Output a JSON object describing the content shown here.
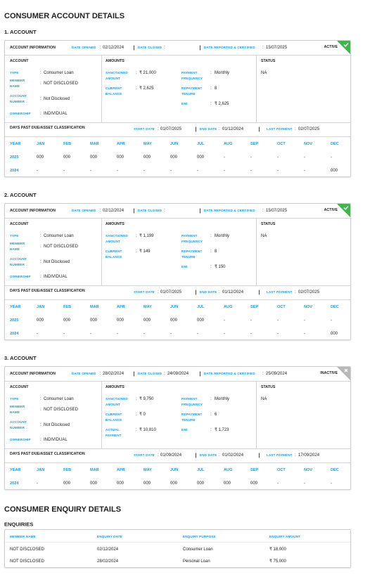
{
  "title": "CONSUMER ACCOUNT DETAILS",
  "separator": ":",
  "labels": {
    "account_information": "ACCOUNT INFORMATION",
    "date_opened": "DATE OPENED",
    "date_closed": "DATE CLOSED",
    "date_reported": "DATE REPORTED & CERTIFIED",
    "account": "ACCOUNT",
    "amounts": "AMOUNTS",
    "status": "STATUS",
    "type": "TYPE",
    "member_name": "MEMBER NAME",
    "account_number": "ACCOUNT NUMBER",
    "ownership": "OWNERSHIP",
    "dpd": "DAYS PAST DUE/ASSET CLASSIFICATION",
    "start_date": "START DATE",
    "end_date": "END DATE",
    "last_payment": "LAST PAYMENT",
    "dpd_columns": [
      "YEAR",
      "JAN",
      "FEB",
      "MAR",
      "APR",
      "MAY",
      "JUN",
      "JUL",
      "AUG",
      "SEP",
      "OCT",
      "NOV",
      "DEC"
    ]
  },
  "accounts": [
    {
      "heading": "1. ACCOUNT",
      "date_opened": "02/12/2024",
      "date_reported": "15/07/2025",
      "badge": "ACTIVE",
      "badge_color": "#3cb84a",
      "type": "Consumer Loan",
      "member_name": "NOT DISCLOSED",
      "account_number": "Not Disclosed",
      "ownership": "INDIVIDUAL",
      "amounts_left": [
        {
          "label": "SANCTIONED AMOUNT",
          "value": "₹ 21,000"
        },
        {
          "label": "CURRENT BALANCE",
          "value": "₹ 2,625"
        }
      ],
      "amounts_right": [
        {
          "label": "PAYMENT FREQUENCY",
          "value": "Monthly"
        },
        {
          "label": "REPAYMENT TENURE",
          "value": "8"
        },
        {
          "label": "EMI",
          "value": "₹ 2,625"
        }
      ],
      "status": "NA",
      "start_date": "01/07/2025",
      "end_date": "01/12/2024",
      "last_payment": "02/07/2025",
      "dpd_rows": [
        {
          "year": "2025",
          "months": [
            "000",
            "000",
            "000",
            "000",
            "000",
            "000",
            "000",
            "-",
            "-",
            "-",
            "-",
            "-"
          ]
        },
        {
          "year": "2024",
          "months": [
            "-",
            "-",
            "-",
            "-",
            "-",
            "-",
            "-",
            "-",
            "-",
            "-",
            "-",
            "000"
          ]
        }
      ]
    },
    {
      "heading": "2. ACCOUNT",
      "date_opened": "02/12/2024",
      "date_reported": "15/07/2025",
      "badge": "ACTIVE",
      "badge_color": "#3cb84a",
      "type": "Consumer Loan",
      "member_name": "NOT DISCLOSED",
      "account_number": "Not Disclosed",
      "ownership": "INDIVIDUAL",
      "amounts_left": [
        {
          "label": "SANCTIONED AMOUNT",
          "value": "₹ 1,199"
        },
        {
          "label": "CURRENT BALANCE",
          "value": "₹ 149"
        }
      ],
      "amounts_right": [
        {
          "label": "PAYMENT FREQUENCY",
          "value": "Monthly"
        },
        {
          "label": "REPAYMENT TENURE",
          "value": "8"
        },
        {
          "label": "EMI",
          "value": "₹ 150"
        }
      ],
      "status": "NA",
      "start_date": "01/07/2025",
      "end_date": "01/12/2024",
      "last_payment": "02/07/2025",
      "dpd_rows": [
        {
          "year": "2025",
          "months": [
            "000",
            "000",
            "000",
            "000",
            "000",
            "000",
            "000",
            "-",
            "-",
            "-",
            "-",
            "-"
          ]
        },
        {
          "year": "2024",
          "months": [
            "-",
            "-",
            "-",
            "-",
            "-",
            "-",
            "-",
            "-",
            "-",
            "-",
            "-",
            "000"
          ]
        }
      ]
    },
    {
      "heading": "3. ACCOUNT",
      "date_opened": "28/02/2024",
      "date_closed": "24/09/2024",
      "date_reported": "25/09/2024",
      "badge": "INACTIVE",
      "badge_color": "#b8b8b8",
      "type": "Consumer Loan",
      "member_name": "NOT DISCLOSED",
      "account_number": "Not Disclosed",
      "ownership": "INDIVIDUAL",
      "amounts_left": [
        {
          "label": "SANCTIONED AMOUNT",
          "value": "₹ 9,750"
        },
        {
          "label": "CURRENT BALANCE",
          "value": "₹ 0"
        },
        {
          "label": "ACTUAL PAYMENT",
          "value": "₹ 10,810"
        }
      ],
      "amounts_right": [
        {
          "label": "PAYMENT FREQUENCY",
          "value": "Monthly"
        },
        {
          "label": "REPAYMENT TENURE",
          "value": "6"
        },
        {
          "label": "EMI",
          "value": "₹ 1,723"
        }
      ],
      "status": "NA",
      "start_date": "01/09/2024",
      "end_date": "01/02/2024",
      "last_payment": "17/09/2024",
      "dpd_rows": [
        {
          "year": "2024",
          "months": [
            "-",
            "000",
            "000",
            "000",
            "000",
            "000",
            "000",
            "000",
            "000",
            "-",
            "-",
            "-"
          ]
        }
      ]
    }
  ],
  "enquiry": {
    "title": "CONSUMER ENQUIRY DETAILS",
    "subtitle": "ENQUIRIES",
    "columns": [
      "MEMBER NAME",
      "ENQUIRY DATE",
      "ENQUIRY PURPOSE",
      "ENQUIRY AMOUNT"
    ],
    "rows": [
      [
        "NOT DISCLOSED",
        "02/12/2024",
        "Consumer Loan",
        "₹ 18,000"
      ],
      [
        "NOT DISCLOSED",
        "28/02/2024",
        "Personal Loan",
        "₹ 75,000"
      ]
    ]
  }
}
